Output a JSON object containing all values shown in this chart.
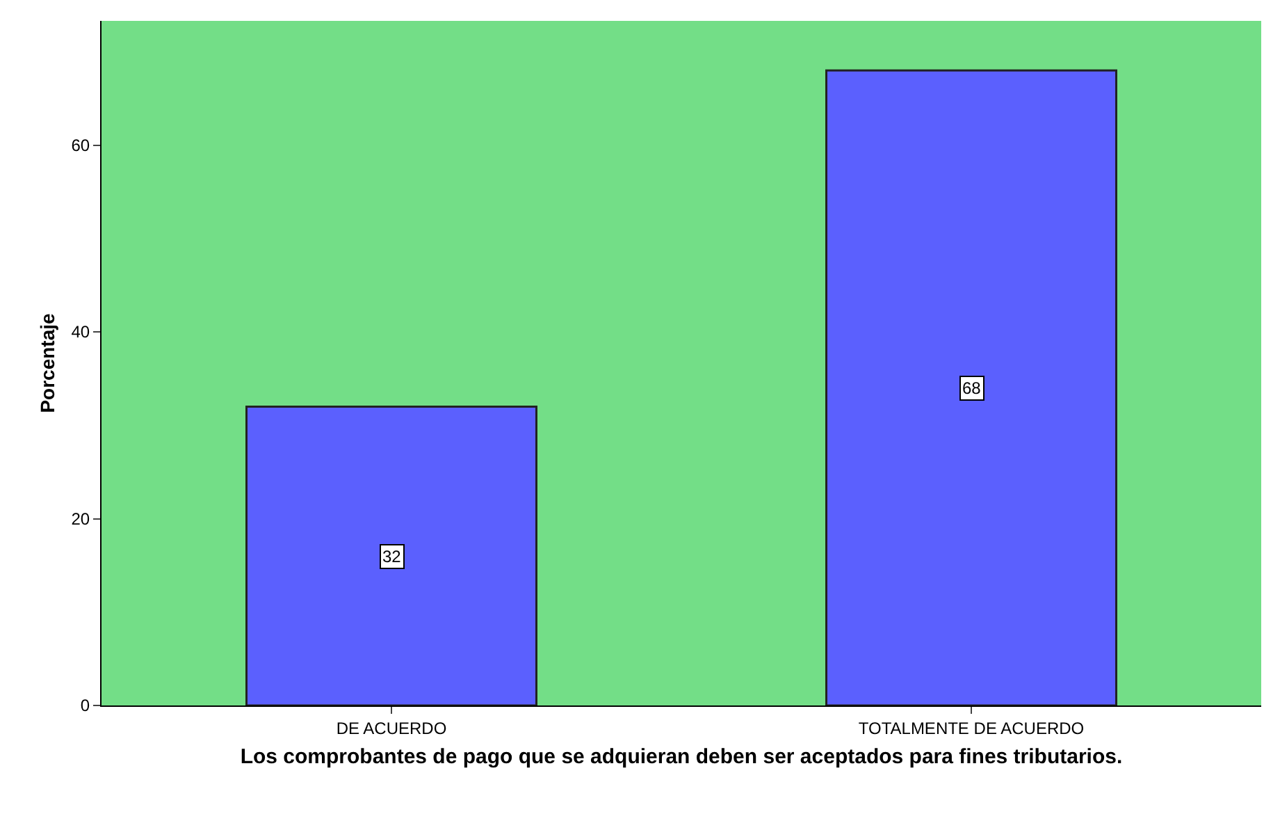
{
  "chart_data": {
    "type": "bar",
    "xlabel": "Los comprobantes de pago que se adquieran deben ser aceptados para fines tributarios.",
    "ylabel": "Porcentaje",
    "categories": [
      "DE ACUERDO",
      "TOTALMENTE DE ACUERDO"
    ],
    "values": [
      32,
      68
    ],
    "color": "#5b60fe",
    "ylim": [
      0,
      73.3
    ],
    "yticks": [
      0,
      20,
      40,
      60
    ],
    "grid": false,
    "data_labels": true
  }
}
